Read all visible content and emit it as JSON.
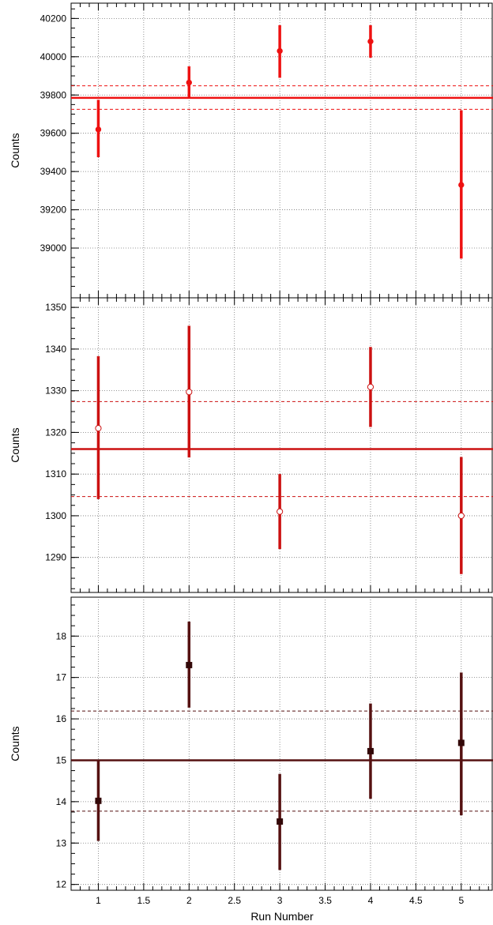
{
  "chart_data": [
    {
      "type": "scatter",
      "title": "",
      "xlabel": "",
      "ylabel": "Counts",
      "xlim": [
        0.7,
        5.35
      ],
      "ylim": [
        38740,
        40280
      ],
      "grid": true,
      "xticks": [],
      "yticks": [
        39000,
        39200,
        39400,
        39600,
        39800,
        40000,
        40200
      ],
      "ytick_labels": [
        "39000",
        "39200",
        "39400",
        "39600",
        "39800",
        "40000",
        "40200"
      ],
      "mean": 39785,
      "band": [
        39725,
        39848
      ],
      "color": "#ee1111",
      "marker": "circle",
      "points": [
        {
          "x": 1,
          "y": 39620,
          "yerr_low": 39475,
          "yerr_high": 39775
        },
        {
          "x": 2,
          "y": 39865,
          "yerr_low": 39785,
          "yerr_high": 39950
        },
        {
          "x": 3,
          "y": 40030,
          "yerr_low": 39890,
          "yerr_high": 40165
        },
        {
          "x": 4,
          "y": 40080,
          "yerr_low": 39995,
          "yerr_high": 40165
        },
        {
          "x": 5,
          "y": 39330,
          "yerr_low": 38945,
          "yerr_high": 39720
        }
      ]
    },
    {
      "type": "scatter",
      "title": "",
      "xlabel": "",
      "ylabel": "Counts",
      "xlim": [
        0.7,
        5.35
      ],
      "ylim": [
        1281.6,
        1352.3
      ],
      "grid": true,
      "xticks": [],
      "yticks": [
        1290,
        1300,
        1310,
        1320,
        1330,
        1340,
        1350
      ],
      "ytick_labels": [
        "1290",
        "1300",
        "1310",
        "1320",
        "1330",
        "1340",
        "1350"
      ],
      "mean": 1316,
      "band": [
        1304.6,
        1327.4
      ],
      "color": "#cc1111",
      "marker": "open-circle",
      "points": [
        {
          "x": 1,
          "y": 1321,
          "yerr_low": 1304,
          "yerr_high": 1338.3
        },
        {
          "x": 2,
          "y": 1329.7,
          "yerr_low": 1314,
          "yerr_high": 1345.6
        },
        {
          "x": 3,
          "y": 1301,
          "yerr_low": 1292,
          "yerr_high": 1310
        },
        {
          "x": 4,
          "y": 1330.9,
          "yerr_low": 1321.3,
          "yerr_high": 1340.5
        },
        {
          "x": 5,
          "y": 1300,
          "yerr_low": 1286,
          "yerr_high": 1314.1
        }
      ]
    },
    {
      "type": "scatter",
      "title": "",
      "xlabel": "Run Number",
      "ylabel": "Counts",
      "xlim": [
        0.7,
        5.35
      ],
      "ylim": [
        11.86,
        18.94
      ],
      "grid": true,
      "xticks": [
        1,
        1.5,
        2,
        2.5,
        3,
        3.5,
        4,
        4.5,
        5
      ],
      "xtick_labels": [
        "1",
        "1.5",
        "2",
        "2.5",
        "3",
        "3.5",
        "4",
        "4.5",
        "5"
      ],
      "yticks": [
        12,
        13,
        14,
        15,
        16,
        17,
        18
      ],
      "ytick_labels": [
        "12",
        "13",
        "14",
        "15",
        "16",
        "17",
        "18"
      ],
      "mean": 15,
      "band": [
        13.77,
        16.19
      ],
      "color": "#551111",
      "marker": "square",
      "points": [
        {
          "x": 1,
          "y": 14.02,
          "yerr_low": 13.05,
          "yerr_high": 15.0
        },
        {
          "x": 2,
          "y": 17.3,
          "yerr_low": 16.27,
          "yerr_high": 18.35
        },
        {
          "x": 3,
          "y": 13.52,
          "yerr_low": 12.35,
          "yerr_high": 14.67
        },
        {
          "x": 4,
          "y": 15.22,
          "yerr_low": 14.07,
          "yerr_high": 16.37
        },
        {
          "x": 5,
          "y": 15.42,
          "yerr_low": 13.67,
          "yerr_high": 17.12
        }
      ]
    }
  ]
}
